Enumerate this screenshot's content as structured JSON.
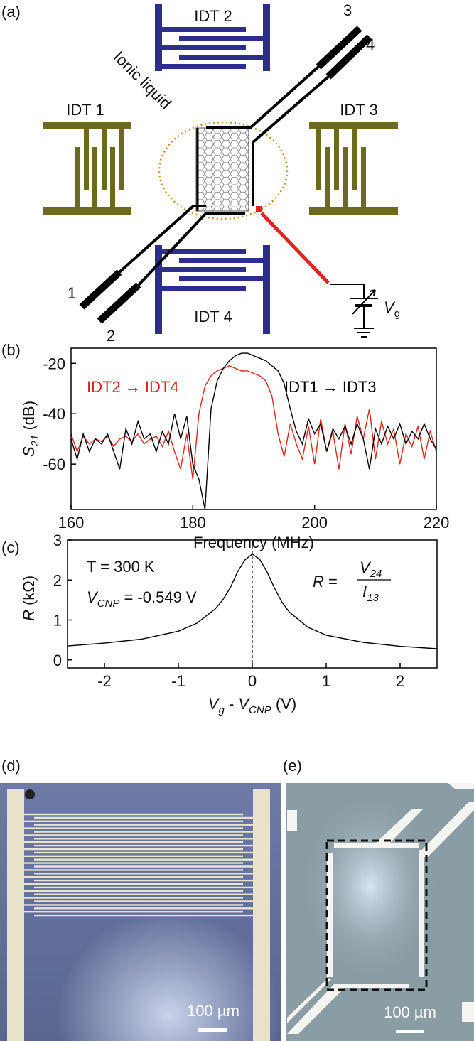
{
  "panel_a": {
    "label": "(a)",
    "idt_1": "IDT 1",
    "idt_2": "IDT 2",
    "idt_3": "IDT 3",
    "idt_4": "IDT 4",
    "ionic_liquid": "Ionic liquid",
    "pad_1": "1",
    "pad_2": "2",
    "pad_3": "3",
    "pad_4": "4",
    "gate": {
      "var": "V",
      "sub": "g"
    }
  },
  "chart_data": [
    {
      "type": "line",
      "panel": "(b)",
      "ylabel": {
        "var": "S",
        "sub": "21",
        "unit": " (dB)"
      },
      "xlabel": "Frequency (MHz)",
      "x": [
        160,
        161,
        162,
        163,
        164,
        165,
        166,
        167,
        168,
        169,
        170,
        171,
        172,
        173,
        174,
        175,
        176,
        177,
        178,
        179,
        180,
        181,
        182,
        183,
        184,
        185,
        186,
        187,
        188,
        189,
        190,
        191,
        192,
        193,
        194,
        195,
        196,
        197,
        198,
        199,
        200,
        201,
        202,
        203,
        204,
        205,
        206,
        207,
        208,
        209,
        210,
        211,
        212,
        213,
        214,
        215,
        216,
        217,
        218,
        219,
        220
      ],
      "series": [
        {
          "name": "IDT2 → IDT4",
          "color": "#e0261c",
          "values": [
            -48,
            -55,
            -49,
            -52,
            -50,
            -51,
            -49,
            -53,
            -50,
            -49,
            -51,
            -48,
            -52,
            -50,
            -49,
            -53,
            -47,
            -55,
            -62,
            -48,
            -66,
            -40,
            -29,
            -25,
            -23,
            -22,
            -21,
            -22,
            -23,
            -23,
            -24,
            -25,
            -27,
            -33,
            -48,
            -57,
            -44,
            -52,
            -58,
            -45,
            -60,
            -42,
            -55,
            -47,
            -62,
            -44,
            -56,
            -41,
            -50,
            -38,
            -58,
            -43,
            -52,
            -46,
            -60,
            -48,
            -53,
            -45,
            -58,
            -47,
            -55
          ]
        },
        {
          "name": "IDT1 → IDT3",
          "color": "#000000",
          "values": [
            -50,
            -58,
            -48,
            -55,
            -50,
            -52,
            -48,
            -55,
            -62,
            -46,
            -52,
            -43,
            -50,
            -48,
            -55,
            -47,
            -52,
            -40,
            -50,
            -41,
            -60,
            -66,
            -78,
            -38,
            -27,
            -22,
            -19,
            -17,
            -16,
            -16,
            -17,
            -18,
            -19,
            -21,
            -23,
            -28,
            -38,
            -47,
            -52,
            -42,
            -48,
            -44,
            -55,
            -46,
            -50,
            -45,
            -52,
            -44,
            -50,
            -62,
            -46,
            -52,
            -45,
            -50,
            -44,
            -52,
            -47,
            -50,
            -44,
            -50,
            -54
          ]
        }
      ],
      "xlim": [
        160,
        220
      ],
      "xticks": [
        160,
        180,
        200,
        220
      ],
      "ylim": [
        -78,
        -14
      ],
      "yticks": [
        -20,
        -40,
        -60
      ]
    },
    {
      "type": "line",
      "panel": "(c)",
      "ylabel": {
        "var": "R",
        "unit": " (kΩ)"
      },
      "xlabel": {
        "v1": "V",
        "s1": "g",
        "mid": " - ",
        "v2": "V",
        "s2": "CNP",
        "unit": " (V)"
      },
      "annotations": {
        "temperature": "T = 300 K",
        "cnp": {
          "var": "V",
          "sub": "CNP",
          "rest": " = -0.549 V"
        },
        "formula": {
          "lhs": "R",
          "eq": " =",
          "num_var": "V",
          "num_sub": "24",
          "den_var": "I",
          "den_sub": "13"
        }
      },
      "x": [
        -2.5,
        -2,
        -1.5,
        -1,
        -0.75,
        -0.5,
        -0.4,
        -0.3,
        -0.2,
        -0.1,
        0,
        0.1,
        0.2,
        0.3,
        0.4,
        0.5,
        0.75,
        1,
        1.5,
        2,
        2.5
      ],
      "series": [
        {
          "color": "#000000",
          "values": [
            0.35,
            0.42,
            0.52,
            0.72,
            0.92,
            1.28,
            1.5,
            1.8,
            2.2,
            2.5,
            2.65,
            2.52,
            2.2,
            1.8,
            1.45,
            1.2,
            0.82,
            0.62,
            0.44,
            0.34,
            0.28
          ]
        }
      ],
      "vline": 0,
      "xlim": [
        -2.5,
        2.5
      ],
      "xticks": [
        -2,
        -1,
        0,
        1,
        2
      ],
      "ylim": [
        -0.2,
        3
      ],
      "yticks": [
        0,
        1,
        2,
        3
      ]
    }
  ],
  "panel_d": {
    "label": "(d)",
    "scale_bar": "100 µm"
  },
  "panel_e": {
    "label": "(e)",
    "scale_bar": "100 µm"
  }
}
